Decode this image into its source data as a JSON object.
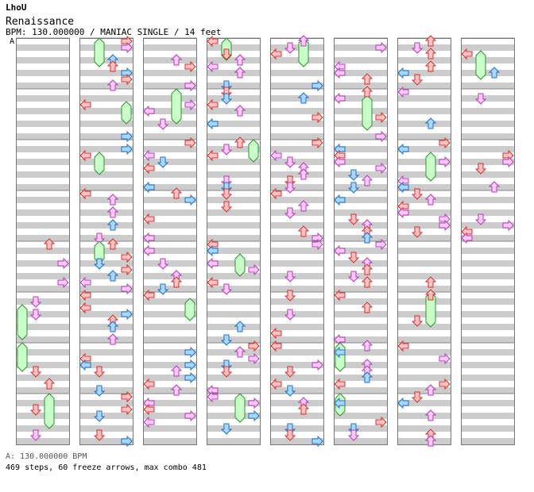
{
  "artist": "LhoU",
  "title": "Renaissance",
  "info": {
    "bpm_label": "BPM: 130.000000",
    "mode": "MANIAC SINGLE",
    "difficulty": "14 feet",
    "line": "BPM: 130.000000 / MANIAC SINGLE / 14 feet"
  },
  "bpm_marker": "A",
  "footer": {
    "bpm_change": "A: 130.000000 BPM",
    "summary": "469 steps, 60 freeze arrows, max combo 481"
  },
  "stats": {
    "steps": 469,
    "freeze_arrows": 60,
    "max_combo": 481
  },
  "colors": {
    "red_fill": "#ffc0c0",
    "red_stroke": "#d03030",
    "pink_fill": "#ffc8ff",
    "pink_stroke": "#b040b0",
    "blue_fill": "#a8d8ff",
    "blue_stroke": "#2070c0",
    "freeze_fill": "#c8ffc8",
    "freeze_stroke": "#309030",
    "stripe": "#cccccc"
  },
  "layout": {
    "columns": 8,
    "measures_per_column": 8,
    "last_column_measures": 4,
    "lanes": [
      "left",
      "down",
      "up",
      "right"
    ]
  }
}
